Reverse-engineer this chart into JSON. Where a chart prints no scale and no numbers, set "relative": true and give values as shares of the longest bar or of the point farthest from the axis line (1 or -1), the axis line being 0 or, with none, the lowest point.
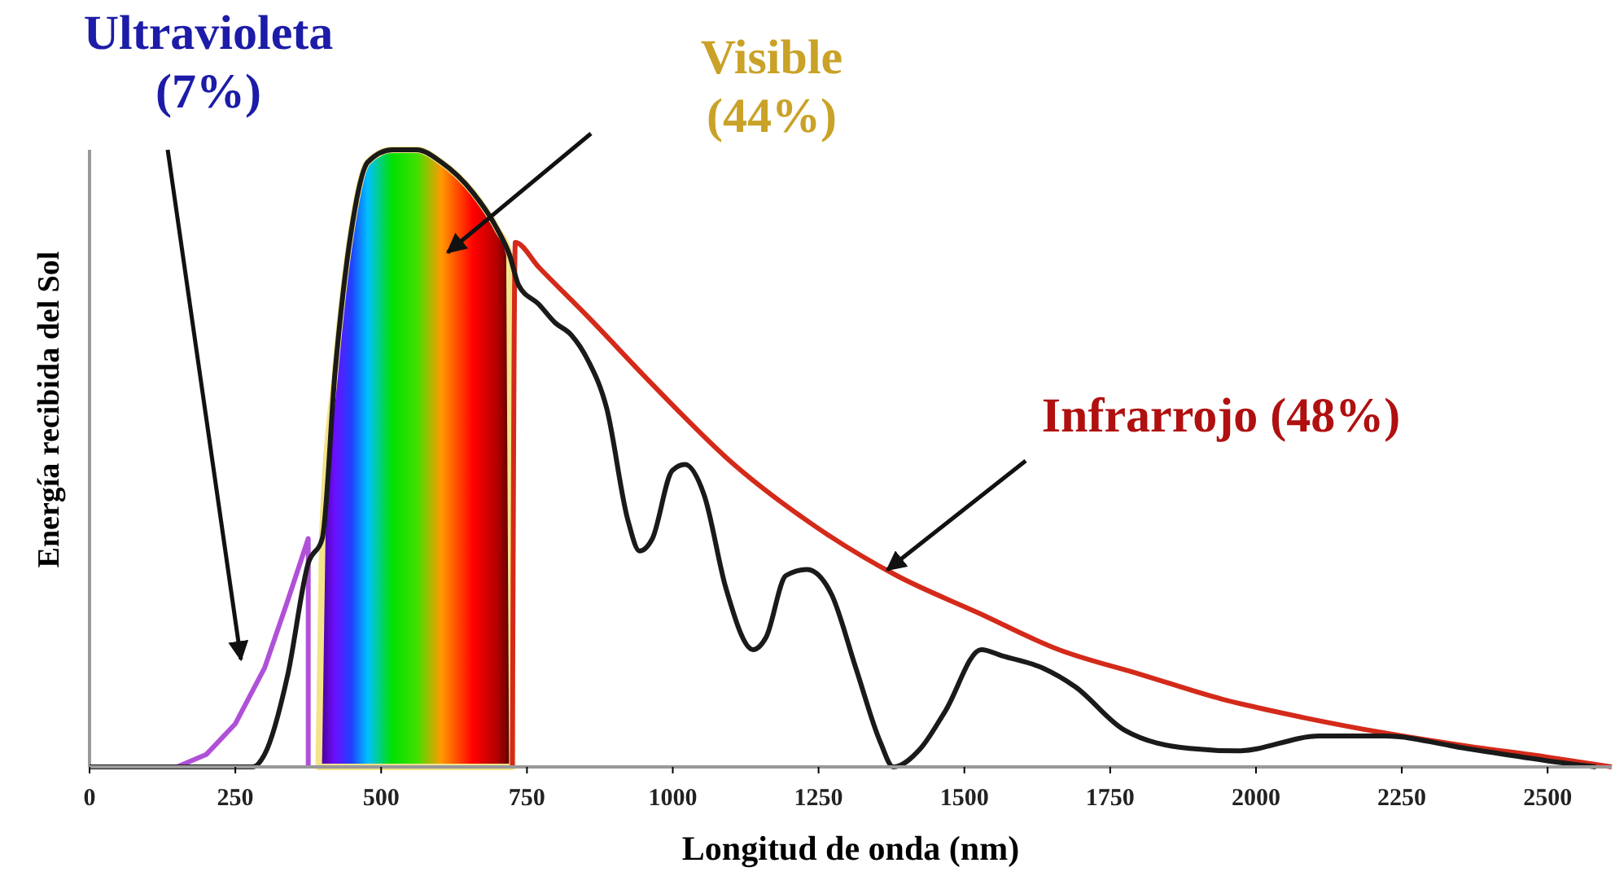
{
  "chart_data": {
    "type": "line",
    "relative": true,
    "xlabel": "Longitud de onda (nm)",
    "ylabel": "Energía recibida del Sol",
    "xlim": [
      0,
      2610
    ],
    "xticks": [
      0,
      250,
      500,
      750,
      1000,
      1250,
      1500,
      1750,
      2000,
      2250,
      2500
    ],
    "grid": false,
    "marker": "none",
    "line_style": "solid",
    "annotations": [
      "Ultravioleta (7%)",
      "Visible (44%)",
      "Infrarrojo (48%)"
    ],
    "series": [
      {
        "type": "area",
        "color": "#f3e48a",
        "x": [
          393,
          399,
          421,
          449,
          477,
          519,
          561,
          603,
          658,
          700,
          720,
          725
        ],
        "values": [
          0,
          0.37,
          0.64,
          0.87,
          0.98,
          1,
          1,
          0.98,
          0.93,
          0.87,
          0.83,
          0
        ],
        "colors": [
          "#3a0070",
          "#5000a0",
          "#6a10ff",
          "#2040ff",
          "#00c0ff",
          "#00e000",
          "#40e000",
          "#ff9900",
          "#ff0000",
          "#b00000",
          "#600000",
          "#400000"
        ]
      },
      {
        "type": "line",
        "color": "#b050d8",
        "x": [
          0,
          150,
          200,
          250,
          300,
          340,
          375,
          375
        ],
        "values": [
          0,
          0,
          0.02,
          0.07,
          0.16,
          0.27,
          0.37,
          0
        ]
      },
      {
        "color": "#d42a1a",
        "x": [
          725,
          730,
          770,
          854,
          965,
          1105,
          1244,
          1384,
          1523,
          1662,
          1802,
          1941,
          2081,
          2220,
          2360,
          2499,
          2610
        ],
        "values": [
          0,
          0.85,
          0.81,
          0.73,
          0.62,
          0.49,
          0.39,
          0.31,
          0.25,
          0.19,
          0.15,
          0.11,
          0.08,
          0.055,
          0.034,
          0.016,
          0
        ]
      },
      {
        "color": "#1a1a1a",
        "x": [
          0,
          280,
          300,
          340,
          375,
          399,
          421,
          449,
          477,
          519,
          561,
          603,
          658,
          700,
          720,
          736,
          770,
          798,
          826,
          854,
          887,
          923,
          943,
          965,
          999,
          1021,
          1054,
          1091,
          1138,
          1160,
          1194,
          1230,
          1272,
          1314,
          1356,
          1378,
          1425,
          1467,
          1529,
          1565,
          1635,
          1690,
          1774,
          1886,
          1969,
          2109,
          2220,
          2360,
          2499,
          2583
        ],
        "values": [
          0,
          0,
          0.02,
          0.15,
          0.33,
          0.37,
          0.64,
          0.87,
          0.98,
          1,
          1,
          0.98,
          0.93,
          0.87,
          0.83,
          0.78,
          0.75,
          0.72,
          0.7,
          0.66,
          0.58,
          0.4,
          0.35,
          0.37,
          0.48,
          0.49,
          0.44,
          0.29,
          0.19,
          0.21,
          0.31,
          0.32,
          0.28,
          0.16,
          0.04,
          0,
          0.03,
          0.09,
          0.19,
          0.18,
          0.16,
          0.13,
          0.06,
          0.03,
          0.026,
          0.05,
          0.05,
          0.03,
          0.01,
          0
        ]
      }
    ]
  }
}
